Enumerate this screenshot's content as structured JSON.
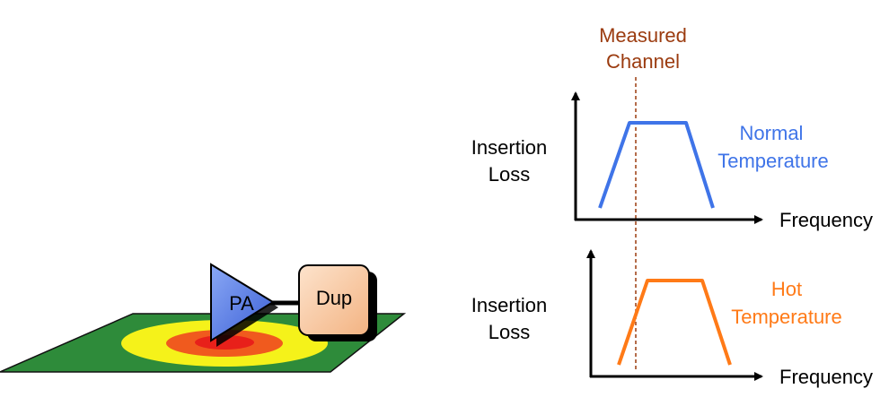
{
  "labels": {
    "measured_channel_line1": "Measured",
    "measured_channel_line2": "Channel",
    "top_ylabel_line1": "Insertion",
    "top_ylabel_line2": "Loss",
    "top_xlabel": "Frequency",
    "normal_line1": "Normal",
    "normal_line2": "Temperature",
    "bottom_ylabel_line1": "Insertion",
    "bottom_ylabel_line2": "Loss",
    "bottom_xlabel": "Frequency",
    "hot_line1": "Hot",
    "hot_line2": "Temperature",
    "pa": "PA",
    "dup": "Dup"
  },
  "colors": {
    "board": "#2e8b3a",
    "heat_outer": "#f5f21a",
    "heat_mid": "#f05a1e",
    "heat_core": "#e8201a",
    "pa_fill": "#5b7fe6",
    "dup_fill": "#f8c9a4",
    "normal_curve": "#3f74e8",
    "hot_curve": "#ff7a17",
    "measured_channel": "#9b3b0f",
    "axis": "#000000"
  },
  "icons": {
    "amplifier": "amplifier-triangle-icon",
    "duplexer": "duplexer-box-icon"
  }
}
